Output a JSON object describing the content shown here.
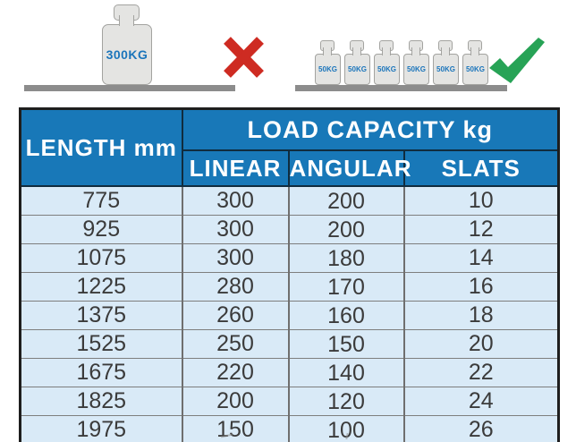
{
  "illustration": {
    "overloaded": {
      "weight_label": "300KG",
      "weight_count": 1,
      "mark_icon": "red-cross-icon"
    },
    "distributed": {
      "weight_label": "50KG",
      "weight_count": 6,
      "mark_icon": "green-check-icon"
    }
  },
  "chart_data": {
    "type": "table",
    "title": "LOAD CAPACITY kg",
    "columns": [
      "LENGTH mm",
      "LINEAR",
      "ANGULAR",
      "SLATS"
    ],
    "rows": [
      [
        775,
        300,
        200,
        10
      ],
      [
        925,
        300,
        200,
        12
      ],
      [
        1075,
        300,
        180,
        14
      ],
      [
        1225,
        280,
        170,
        16
      ],
      [
        1375,
        260,
        160,
        18
      ],
      [
        1525,
        250,
        150,
        20
      ],
      [
        1675,
        220,
        140,
        22
      ],
      [
        1825,
        200,
        120,
        24
      ],
      [
        1975,
        150,
        100,
        26
      ]
    ],
    "layout": {
      "header_rows": 2,
      "body_rows": 9,
      "grid": true
    }
  },
  "colors": {
    "header_bg": "#1878B8",
    "header_text": "#FFFFFF",
    "row_bg": "#D9EAF7",
    "body_text": "#3B3B3B",
    "cross_red": "#CE2B22",
    "check_green": "#27A356",
    "label_blue": "#1B75BB",
    "shelf_gray": "#8C8C8C",
    "weight_fill": "#E4E4E2",
    "weight_border": "#A3A3A0"
  }
}
